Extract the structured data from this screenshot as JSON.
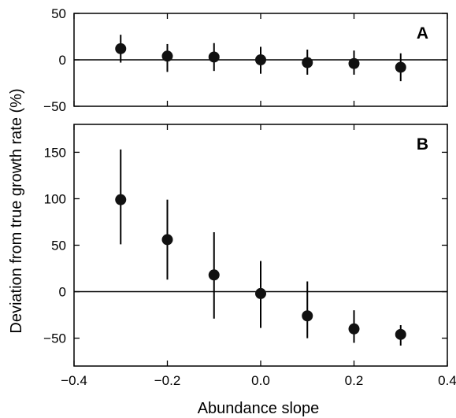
{
  "chart_data": [
    {
      "type": "scatter",
      "panel_label": "A",
      "x": [
        -0.3,
        -0.2,
        -0.1,
        0.0,
        0.1,
        0.2,
        0.3
      ],
      "y": [
        12,
        4,
        3,
        0,
        -3,
        -4,
        -8
      ],
      "err_low": [
        -3,
        -13,
        -12,
        -15,
        -16,
        -16,
        -23
      ],
      "err_high": [
        27,
        17,
        18,
        14,
        11,
        10,
        7
      ],
      "xlim": [
        -0.4,
        0.4
      ],
      "ylim": [
        -50,
        50
      ],
      "yticks": [
        -50,
        0,
        50
      ],
      "ytick_labels": [
        "−50",
        "0",
        "50"
      ],
      "reference_line": 0,
      "grid": false
    },
    {
      "type": "scatter",
      "panel_label": "B",
      "x": [
        -0.3,
        -0.2,
        -0.1,
        0.0,
        0.1,
        0.2,
        0.3
      ],
      "y": [
        99,
        56,
        18,
        -2,
        -26,
        -40,
        -46
      ],
      "err_low": [
        51,
        13,
        -29,
        -39,
        -50,
        -55,
        -58
      ],
      "err_high": [
        153,
        99,
        64,
        33,
        11,
        -20,
        -36
      ],
      "xlim": [
        -0.4,
        0.4
      ],
      "ylim": [
        -80,
        180
      ],
      "yticks": [
        -50,
        0,
        50,
        100,
        150
      ],
      "ytick_labels": [
        "−50",
        "0",
        "50",
        "100",
        "150"
      ],
      "xticks": [
        -0.4,
        -0.2,
        0.0,
        0.2,
        0.4
      ],
      "xtick_labels": [
        "−0.4",
        "−0.2",
        "0.0",
        "0.2",
        "0.4"
      ],
      "reference_line": 0,
      "grid": false
    }
  ],
  "labels": {
    "xlabel": "Abundance slope",
    "ylabel": "Deviation from true growth rate (%)"
  }
}
